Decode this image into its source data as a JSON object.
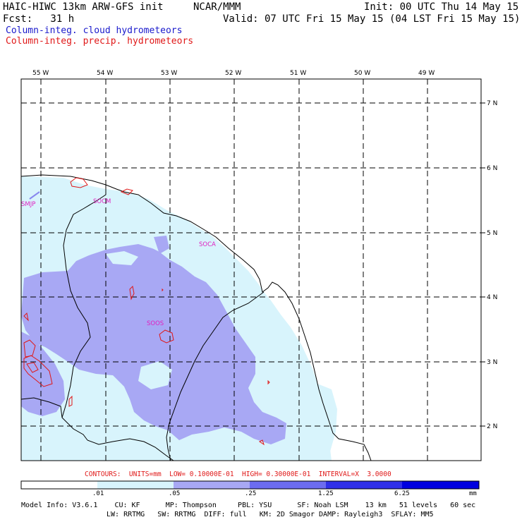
{
  "header": {
    "model": "HAIC-HIWC 13km ARW-GFS init",
    "org": "NCAR/MMM",
    "init": "Init: 00 UTC Thu 14 May 15",
    "fcst": "Fcst:   31 h",
    "valid": "Valid: 07 UTC Fri 15 May 15 (04 LST Fri 15 May 15)"
  },
  "legend": {
    "cloud": "Column-integ. cloud hydrometeors",
    "precip": "Column-integ. precip. hydrometeors",
    "cloud_color": "#1a1acc",
    "precip_color": "#e01818"
  },
  "map": {
    "lon_labels": [
      "55 W",
      "54 W",
      "53 W",
      "52 W",
      "51 W",
      "50 W",
      "49 W"
    ],
    "lat_labels": [
      "7 N",
      "6 N",
      "5 N",
      "4 N",
      "3 N",
      "2 N"
    ],
    "stations": [
      "SMJP",
      "SOCM",
      "SOCA",
      "SOOS"
    ],
    "station_color": "#e020c0",
    "fill_colors": [
      "#ffffff",
      "#d8f4fc",
      "#a8a8f4",
      "#6c6cf0",
      "#3030e8",
      "#0000e0"
    ]
  },
  "contours_line": "CONTOURS:  UNITS=mm  LOW= 0.10000E-01  HIGH= 0.30000E-01  INTERVAL=X  3.0000",
  "colorbar": {
    "ticks": [
      ".01",
      ".05",
      ".25",
      "1.25",
      "6.25"
    ],
    "unit": "mm"
  },
  "model_info": {
    "line1": "Model Info: V3.6.1    CU: KF      MP: Thompson     PBL: YSU      SF: Noah LSM    13 km   51 levels   60 sec",
    "line2": "LW: RRTMG   SW: RRTMG  DIFF: full   KM: 2D Smagor DAMP: Rayleigh3  SFLAY: MM5"
  }
}
